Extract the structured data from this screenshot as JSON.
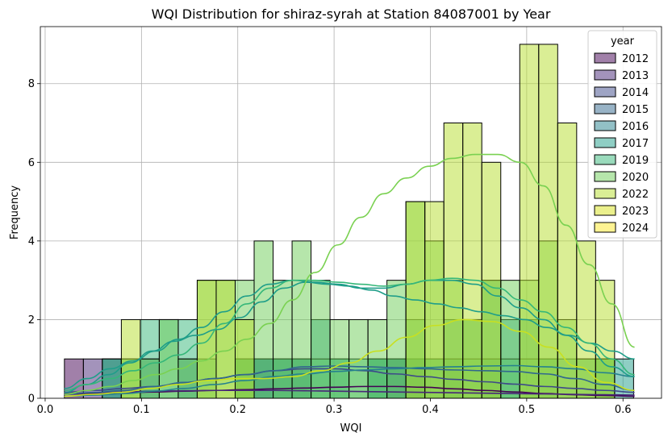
{
  "chart_data": {
    "type": "bar",
    "title": "WQI Distribution for shiraz-syrah at Station 84087001 by Year",
    "xlabel": "WQI",
    "ylabel": "Frequency",
    "xlim": [
      -0.005,
      0.64
    ],
    "ylim": [
      0,
      9.45
    ],
    "x_ticks": [
      "0.0",
      "0.1",
      "0.2",
      "0.3",
      "0.4",
      "0.5",
      "0.6"
    ],
    "x_tick_values": [
      0.0,
      0.1,
      0.2,
      0.3,
      0.4,
      0.5,
      0.6
    ],
    "y_ticks": [
      "0",
      "2",
      "4",
      "6",
      "8"
    ],
    "y_tick_values": [
      0,
      2,
      4,
      6,
      8
    ],
    "grid": true,
    "legend": {
      "title": "year",
      "position": "top-right"
    },
    "bin_start": 0.02,
    "bin_width": 0.0197,
    "series": [
      {
        "name": "2012",
        "color": "#440154",
        "counts": [
          1,
          0,
          0,
          0,
          0,
          0,
          0,
          0,
          0,
          0,
          0,
          0,
          0,
          0,
          0,
          0,
          0,
          1,
          0,
          0,
          0,
          0,
          0,
          0,
          0,
          0,
          0,
          0,
          0,
          0
        ],
        "kde": [
          0.1,
          0.12,
          0.14,
          0.16,
          0.18,
          0.2,
          0.22,
          0.24,
          0.26,
          0.28,
          0.3,
          0.3,
          0.28,
          0.24,
          0.2,
          0.16,
          0.12,
          0.09,
          0.07,
          0.05
        ]
      },
      {
        "name": "2013",
        "color": "#482878",
        "counts": [
          0,
          1,
          0,
          0,
          0,
          0,
          0,
          0,
          0,
          0,
          0,
          0,
          0,
          0,
          0,
          0,
          0,
          0,
          0,
          0,
          0,
          0,
          0,
          0,
          0,
          0,
          0,
          0,
          0,
          0
        ],
        "kde": [
          0.12,
          0.14,
          0.16,
          0.18,
          0.19,
          0.2,
          0.2,
          0.2,
          0.19,
          0.18,
          0.17,
          0.16,
          0.15,
          0.14,
          0.13,
          0.12,
          0.11,
          0.1,
          0.09,
          0.08
        ]
      },
      {
        "name": "2014",
        "color": "#3e4a89",
        "counts": [
          0,
          0,
          1,
          0,
          0,
          0,
          0,
          0,
          0,
          0,
          1,
          1,
          1,
          0,
          0,
          0,
          0,
          0,
          1,
          0,
          0,
          0,
          0,
          0,
          0,
          0,
          0,
          0,
          0,
          0
        ],
        "kde": [
          0.15,
          0.2,
          0.25,
          0.3,
          0.4,
          0.5,
          0.6,
          0.7,
          0.75,
          0.75,
          0.7,
          0.62,
          0.55,
          0.48,
          0.42,
          0.36,
          0.3,
          0.25,
          0.2,
          0.15
        ]
      },
      {
        "name": "2015",
        "color": "#31688e",
        "counts": [
          0,
          0,
          1,
          0,
          1,
          0,
          1,
          0,
          0,
          1,
          0,
          0,
          0,
          0,
          0,
          0,
          0,
          0,
          1,
          0,
          1,
          0,
          1,
          0,
          0,
          0,
          0,
          0,
          0,
          0
        ],
        "kde": [
          0.1,
          0.15,
          0.2,
          0.3,
          0.4,
          0.5,
          0.6,
          0.7,
          0.8,
          0.82,
          0.8,
          0.78,
          0.75,
          0.72,
          0.7,
          0.68,
          0.62,
          0.5,
          0.35,
          0.2
        ]
      },
      {
        "name": "2016",
        "color": "#26828e",
        "counts": [
          0,
          0,
          0,
          0,
          0,
          0,
          0,
          0,
          0,
          0,
          1,
          0,
          0,
          0,
          0,
          0,
          1,
          0,
          0,
          0,
          0,
          0,
          0,
          0,
          0,
          0,
          0,
          0,
          0,
          0
        ],
        "kde": [
          0.05,
          0.08,
          0.12,
          0.18,
          0.25,
          0.35,
          0.45,
          0.55,
          0.62,
          0.68,
          0.72,
          0.75,
          0.78,
          0.8,
          0.82,
          0.83,
          0.8,
          0.75,
          0.65,
          0.55
        ]
      },
      {
        "name": "2017",
        "color": "#1f9e89",
        "counts": [
          0,
          0,
          0,
          0,
          0,
          0,
          0,
          0,
          0,
          1,
          1,
          1,
          1,
          2,
          1,
          0,
          1,
          1,
          1,
          1,
          2,
          2,
          3,
          2,
          2,
          1,
          1,
          1,
          1,
          1
        ],
        "kde": [
          0.15,
          0.35,
          0.6,
          0.9,
          1.2,
          1.45,
          1.6,
          1.75,
          2.05,
          2.45,
          2.8,
          2.95,
          2.9,
          2.85,
          2.75,
          2.6,
          2.5,
          2.4,
          2.3,
          2.2,
          2.1,
          2.0,
          1.8,
          1.6,
          1.4,
          1.2,
          1.0
        ]
      },
      {
        "name": "2019",
        "color": "#35b779",
        "counts": [
          0,
          0,
          1,
          1,
          2,
          2,
          2,
          1,
          0,
          1,
          0,
          1,
          1,
          1,
          1,
          1,
          1,
          1,
          2,
          1,
          1,
          1,
          1,
          1,
          1,
          1,
          0,
          0,
          1,
          0
        ],
        "kde": [
          0.25,
          0.5,
          0.75,
          0.95,
          1.2,
          1.5,
          1.8,
          2.2,
          2.6,
          2.9,
          3.0,
          2.95,
          2.9,
          2.8,
          2.8,
          2.9,
          3.0,
          3.0,
          2.9,
          2.6,
          2.3,
          2.0,
          1.6,
          1.2,
          0.8,
          0.55
        ]
      },
      {
        "name": "2020",
        "color": "#6ece58",
        "counts": [
          0,
          0,
          0,
          1,
          1,
          2,
          1,
          3,
          3,
          3,
          4,
          3,
          4,
          3,
          2,
          2,
          2,
          3,
          5,
          4,
          3,
          2,
          3,
          3,
          3,
          4,
          2,
          1,
          1,
          0
        ],
        "kde": [
          0.2,
          0.35,
          0.5,
          0.7,
          0.9,
          1.1,
          1.4,
          1.9,
          2.4,
          2.8,
          3.0,
          3.0,
          2.95,
          2.9,
          2.85,
          2.9,
          3.0,
          3.05,
          3.0,
          2.8,
          2.5,
          2.2,
          1.8,
          1.4,
          1.0,
          0.6
        ]
      },
      {
        "name": "2022",
        "color": "#b5de2b",
        "counts": [
          0,
          0,
          0,
          2,
          0,
          0,
          0,
          3,
          3,
          2,
          0,
          0,
          0,
          0,
          0,
          0,
          0,
          0,
          5,
          5,
          7,
          7,
          6,
          0,
          9,
          9,
          7,
          4,
          3,
          0
        ],
        "kde": [
          0.1,
          0.2,
          0.3,
          0.45,
          0.6,
          0.75,
          0.95,
          1.2,
          1.5,
          1.9,
          2.5,
          3.2,
          3.9,
          4.6,
          5.2,
          5.6,
          5.9,
          6.1,
          6.2,
          6.2,
          6.0,
          5.4,
          4.4,
          3.4,
          2.4,
          1.3
        ]
      },
      {
        "name": "2023",
        "color": "#d8e219",
        "counts": [
          0,
          0,
          0,
          0,
          0,
          0,
          0,
          0,
          0,
          0,
          0,
          0,
          0,
          0,
          0,
          0,
          0,
          0,
          0,
          0,
          0,
          0,
          0,
          0,
          0,
          0,
          0,
          0,
          0,
          0
        ],
        "kde": [
          0.05,
          0.1,
          0.15,
          0.25,
          0.35,
          0.45,
          0.5,
          0.5,
          0.55,
          0.7,
          0.9,
          1.2,
          1.55,
          1.85,
          2.0,
          1.95,
          1.7,
          1.3,
          0.8,
          0.4,
          0.2
        ]
      },
      {
        "name": "2024",
        "color": "#fde725",
        "counts": [
          0,
          0,
          0,
          0,
          0,
          0,
          0,
          0,
          0,
          0,
          0,
          0,
          0,
          0,
          0,
          0,
          0,
          0,
          0,
          0,
          0,
          0,
          0,
          0,
          0,
          0,
          0,
          0,
          0,
          0
        ],
        "kde": []
      }
    ],
    "kde_lines": [
      {
        "name": "2019",
        "color": "#1f9e89"
      },
      {
        "name": "2020",
        "color": "#35b779"
      },
      {
        "name": "2022",
        "color": "#7ad151"
      },
      {
        "name": "2023",
        "color": "#c8e020"
      }
    ]
  }
}
